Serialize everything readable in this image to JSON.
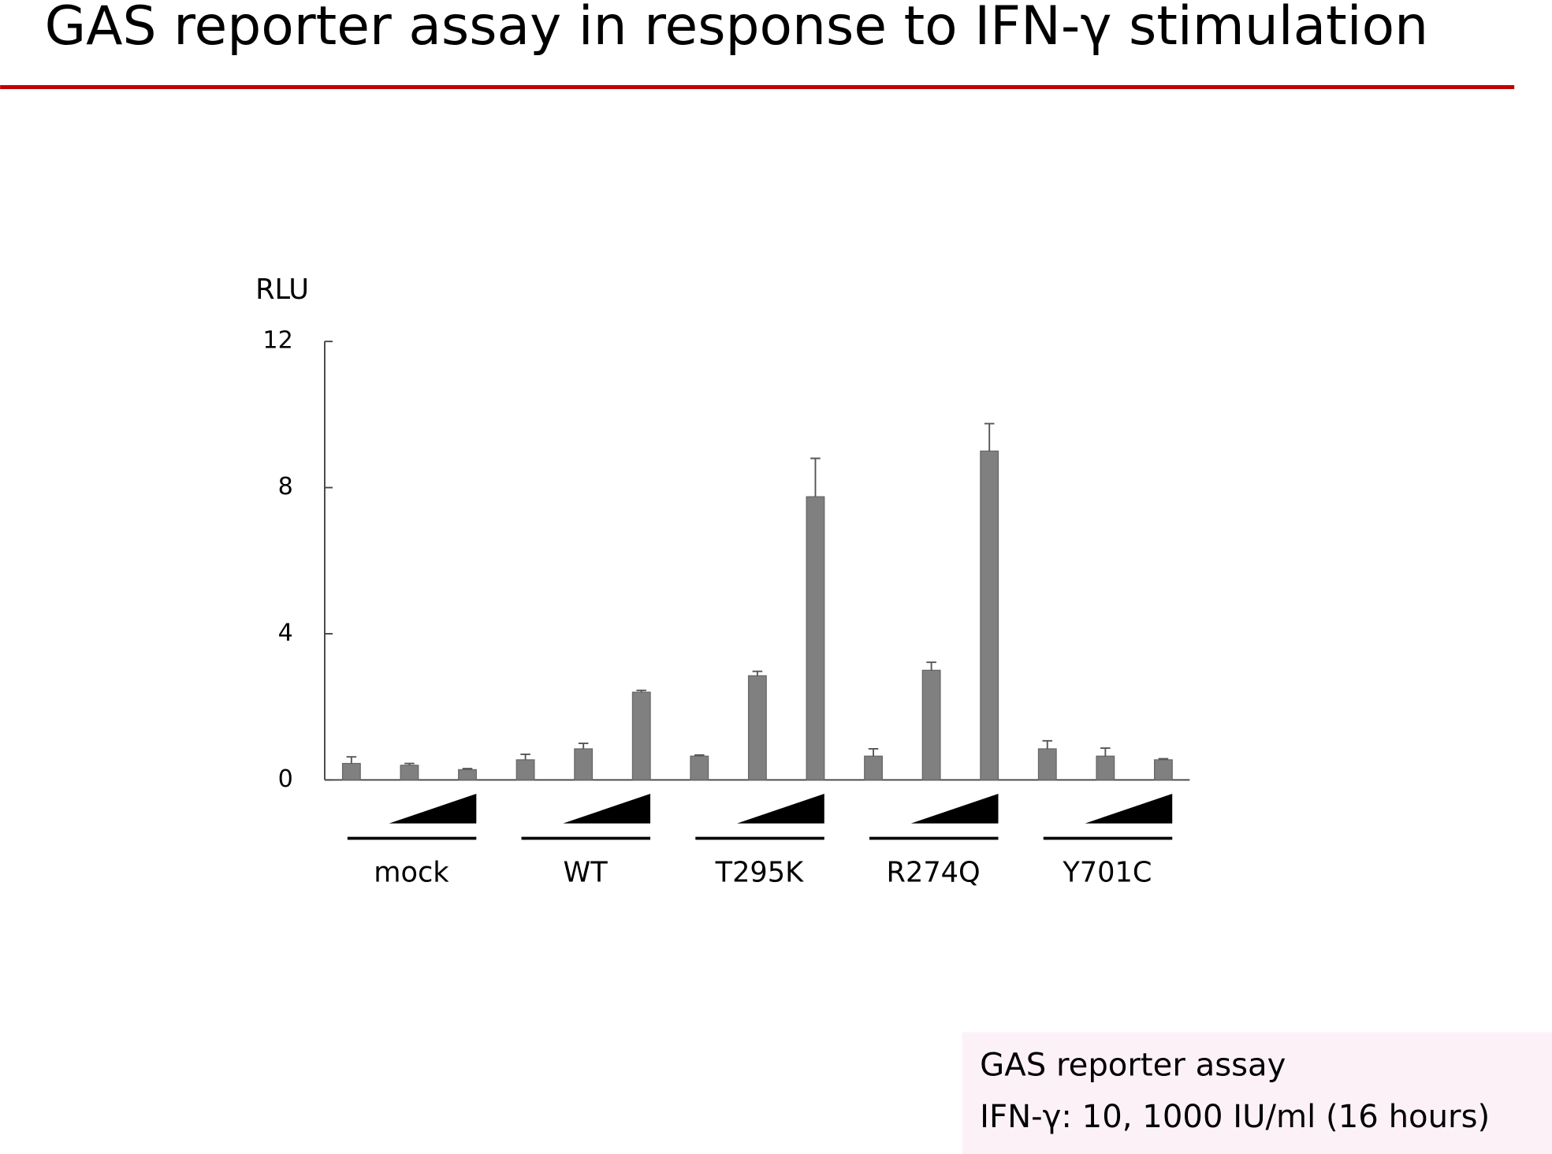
{
  "chart_data": {
    "type": "bar",
    "title": "GAS reporter assay in response to IFN-γ stimulation",
    "ylabel": "RLU",
    "categories": [
      "mock",
      "WT",
      "T295K",
      "R274Q",
      "Y701C"
    ],
    "series": [
      {
        "color": "#808080",
        "values": [
          0.45,
          0.55,
          0.65,
          0.65,
          0.85
        ],
        "errors": [
          0.18,
          0.15,
          0.03,
          0.2,
          0.22
        ]
      },
      {
        "color": "#808080",
        "values": [
          0.4,
          0.85,
          2.85,
          3.0,
          0.65
        ],
        "errors": [
          0.05,
          0.15,
          0.12,
          0.22,
          0.22
        ]
      },
      {
        "color": "#808080",
        "values": [
          0.28,
          2.4,
          7.75,
          9.0,
          0.55
        ],
        "errors": [
          0.03,
          0.05,
          1.05,
          0.75,
          0.03
        ]
      }
    ],
    "ylim": [
      0,
      12
    ],
    "yticks": [
      0,
      4,
      8,
      12
    ],
    "grid": false
  },
  "note": {
    "lines": [
      "GAS reporter assay",
      "IFN-γ: 10, 1000 IU/ml (16 hours)"
    ]
  }
}
